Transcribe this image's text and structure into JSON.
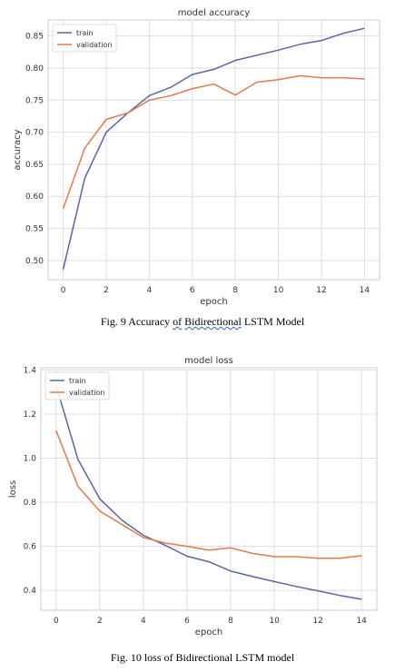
{
  "chart_data": [
    {
      "type": "line",
      "title": "model accuracy",
      "xlabel": "epoch",
      "ylabel": "accuracy",
      "xlim": [
        -0.7,
        14.7
      ],
      "ylim": [
        0.47,
        0.875
      ],
      "xticks": [
        0,
        2,
        4,
        6,
        8,
        10,
        12,
        14
      ],
      "yticks": [
        0.5,
        0.55,
        0.6,
        0.65,
        0.7,
        0.75,
        0.8,
        0.85
      ],
      "ytick_labels": [
        "0.50",
        "0.55",
        "0.60",
        "0.65",
        "0.70",
        "0.75",
        "0.80",
        "0.85"
      ],
      "grid": true,
      "legend": "top-left",
      "x": [
        0,
        1,
        2,
        3,
        4,
        5,
        6,
        7,
        8,
        9,
        10,
        11,
        12,
        13,
        14
      ],
      "series": [
        {
          "name": "train",
          "color": "#5865a8",
          "values": [
            0.486,
            0.628,
            0.7,
            0.73,
            0.757,
            0.77,
            0.79,
            0.798,
            0.812,
            0.82,
            0.828,
            0.837,
            0.843,
            0.854,
            0.862
          ]
        },
        {
          "name": "validation",
          "color": "#e07b4f",
          "values": [
            0.581,
            0.675,
            0.72,
            0.73,
            0.75,
            0.757,
            0.768,
            0.775,
            0.758,
            0.778,
            0.782,
            0.788,
            0.785,
            0.785,
            0.783
          ]
        }
      ]
    },
    {
      "type": "line",
      "title": "model loss",
      "xlabel": "epoch",
      "ylabel": "loss",
      "xlim": [
        -0.7,
        14.7
      ],
      "ylim": [
        0.31,
        1.41
      ],
      "xticks": [
        0,
        2,
        4,
        6,
        8,
        10,
        12,
        14
      ],
      "yticks": [
        0.4,
        0.6,
        0.8,
        1.0,
        1.2,
        1.4
      ],
      "ytick_labels": [
        "0.4",
        "0.6",
        "0.8",
        "1.0",
        "1.2",
        "1.4"
      ],
      "grid": true,
      "legend": "top-left",
      "x": [
        0,
        1,
        2,
        3,
        4,
        5,
        6,
        7,
        8,
        9,
        10,
        11,
        12,
        13,
        14
      ],
      "series": [
        {
          "name": "train",
          "color": "#5865a8",
          "values": [
            1.33,
            0.995,
            0.815,
            0.72,
            0.65,
            0.605,
            0.555,
            0.53,
            0.488,
            0.463,
            0.44,
            0.418,
            0.398,
            0.377,
            0.36
          ]
        },
        {
          "name": "validation",
          "color": "#e07b4f",
          "values": [
            1.125,
            0.872,
            0.76,
            0.7,
            0.64,
            0.615,
            0.6,
            0.583,
            0.593,
            0.568,
            0.553,
            0.553,
            0.546,
            0.546,
            0.557
          ]
        }
      ]
    }
  ],
  "captions": {
    "fig9_prefix": "Fig. 9 Accuracy ",
    "fig9_of": "of",
    "fig9_space": " ",
    "fig9_bidir": "Bidirectional",
    "fig9_suffix": " LSTM Model",
    "fig10": "Fig. 10 loss of Bidirectional LSTM model"
  }
}
